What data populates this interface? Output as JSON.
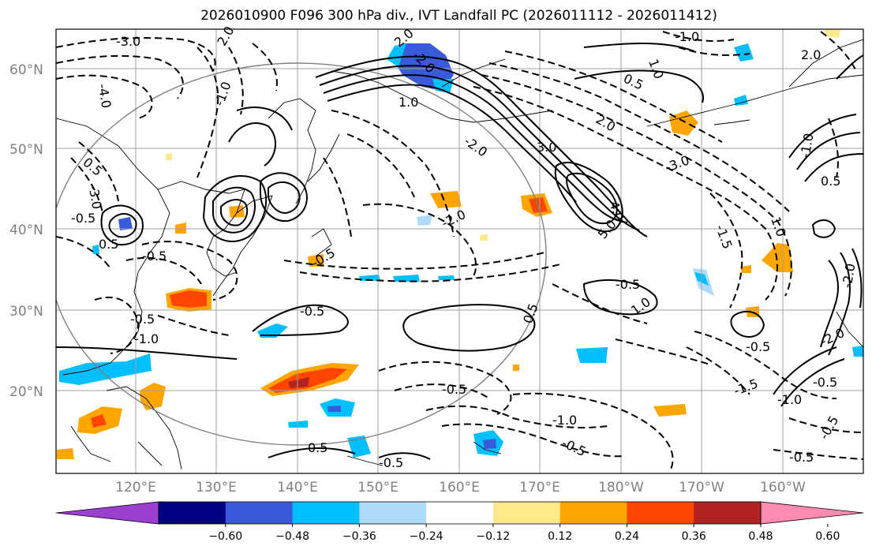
{
  "title": "2026010900 F096 300 hPa div., IVT Landfall PC (2026011112 - 2026011412)",
  "lat_labels": [
    "60°N",
    "50°N",
    "40°N",
    "30°N",
    "20°N"
  ],
  "lon_labels": [
    "120°E",
    "130°E",
    "140°E",
    "150°E",
    "160°E",
    "170°E",
    "180°W",
    "170°W",
    "160°W"
  ],
  "colorbar": {
    "ticks": [
      "−0.60",
      "−0.48",
      "−0.36",
      "−0.24",
      "−0.12",
      "0.12",
      "0.24",
      "0.36",
      "0.48",
      "0.60"
    ],
    "colors": [
      "#9a3fd0",
      "#000080",
      "#3a5bd9",
      "#00bfff",
      "#aedcf8",
      "#ffffff",
      "#ffe98a",
      "#ffa500",
      "#ff4500",
      "#b22222",
      "#ff8cb0"
    ]
  },
  "contour_labels": [
    "-3.0",
    "2.0",
    "-4.0",
    "-1.0",
    "0.5",
    "-3.0",
    "2.0",
    "1.0",
    "-2.0",
    "0.5",
    "1.0",
    "-1.0",
    "2.0",
    "2.0",
    "3.0",
    "-2.0",
    "-3.0",
    "4.0",
    "5.0",
    "1.0",
    "-1.5",
    "-2.0",
    "-0.5",
    "0.5",
    "-0.5",
    "-0.5",
    "-1.0",
    "-0.5",
    "-0.5",
    "-0.5",
    "-2.0",
    "-1.0",
    "-0.5",
    "0.5",
    "-1.5",
    "-1.0",
    "-0.5",
    "-0.5",
    "-0.5",
    "1.0",
    "-1.0",
    "0.5",
    "-0.5",
    "-0.5",
    "-2.0",
    "0.5",
    "-0.5"
  ],
  "features": {
    "geo_circle": "great-circle radius ring",
    "coastline": "coastlines"
  }
}
